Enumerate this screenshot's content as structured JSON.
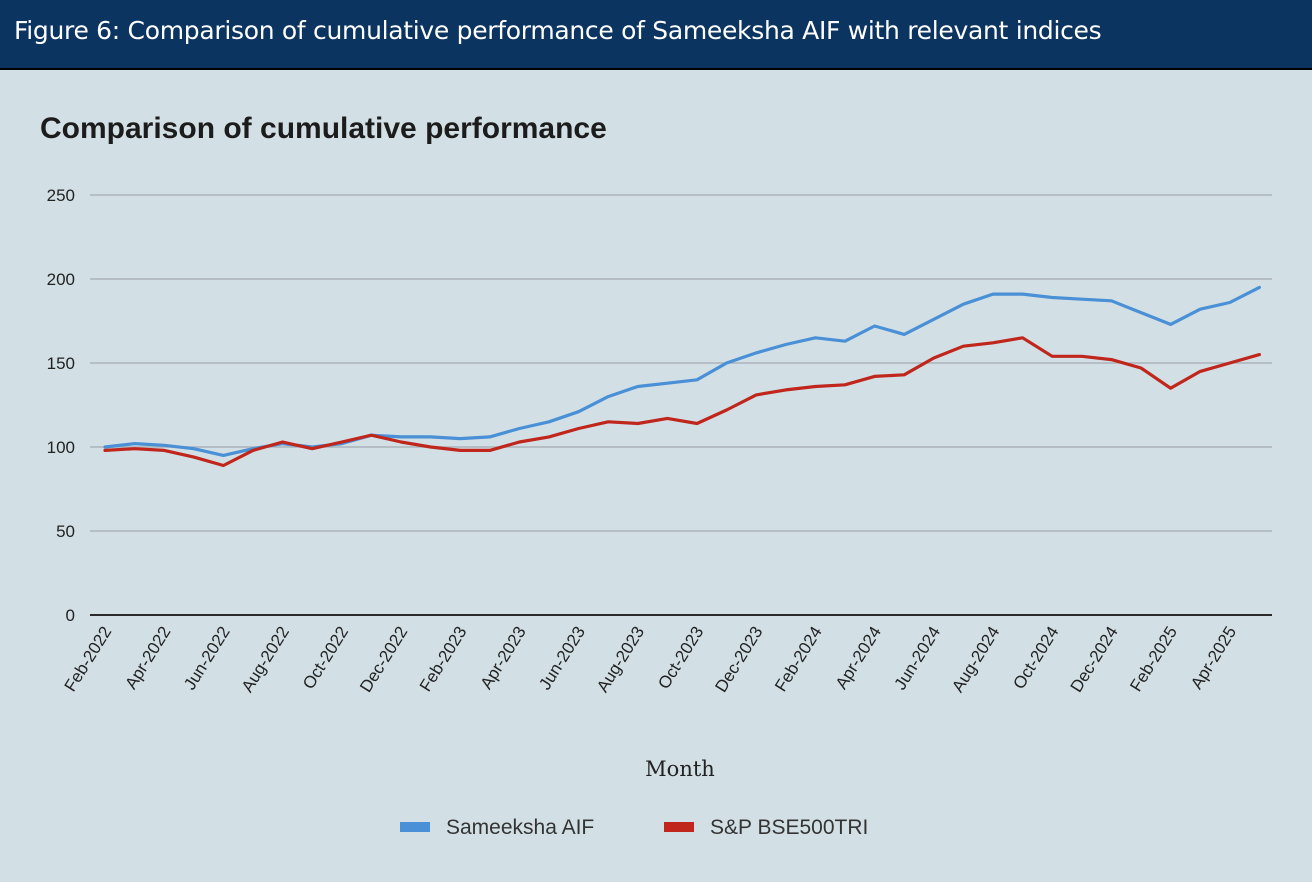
{
  "header": {
    "title": "Figure 6: Comparison of cumulative performance of Sameeksha AIF with relevant indices"
  },
  "chart_data": {
    "type": "line",
    "title": "Comparison of cumulative performance",
    "xlabel": "Month",
    "ylabel": "",
    "ylim": [
      0,
      250
    ],
    "yticks": [
      0,
      50,
      100,
      150,
      200,
      250
    ],
    "grid": true,
    "legend_position": "bottom",
    "x": [
      "Feb-2022",
      "Mar-2022",
      "Apr-2022",
      "May-2022",
      "Jun-2022",
      "Jul-2022",
      "Aug-2022",
      "Sep-2022",
      "Oct-2022",
      "Nov-2022",
      "Dec-2022",
      "Jan-2023",
      "Feb-2023",
      "Mar-2023",
      "Apr-2023",
      "May-2023",
      "Jun-2023",
      "Jul-2023",
      "Aug-2023",
      "Sep-2023",
      "Oct-2023",
      "Nov-2023",
      "Dec-2023",
      "Jan-2024",
      "Feb-2024",
      "Mar-2024",
      "Apr-2024",
      "May-2024",
      "Jun-2024",
      "Jul-2024",
      "Aug-2024",
      "Sep-2024",
      "Oct-2024",
      "Nov-2024",
      "Dec-2024",
      "Jan-2025",
      "Feb-2025",
      "Mar-2025",
      "Apr-2025",
      "May-2025"
    ],
    "x_tick_labels": [
      "Feb-2022",
      "Apr-2022",
      "Jun-2022",
      "Aug-2022",
      "Oct-2022",
      "Dec-2022",
      "Feb-2023",
      "Apr-2023",
      "Jun-2023",
      "Aug-2023",
      "Oct-2023",
      "Dec-2023",
      "Feb-2024",
      "Apr-2024",
      "Jun-2024",
      "Aug-2024",
      "Oct-2024",
      "Dec-2024",
      "Feb-2025",
      "Apr-2025"
    ],
    "series": [
      {
        "name": "Sameeksha AIF",
        "color": "#4a90d6",
        "values": [
          100,
          102,
          101,
          99,
          95,
          99,
          102,
          100,
          102,
          107,
          106,
          106,
          105,
          106,
          111,
          115,
          121,
          130,
          136,
          138,
          140,
          150,
          156,
          161,
          165,
          163,
          172,
          167,
          176,
          185,
          191,
          191,
          189,
          188,
          187,
          180,
          173,
          182,
          186,
          195
        ]
      },
      {
        "name": "S&P BSE500TRI",
        "color": "#c0261b",
        "values": [
          98,
          99,
          98,
          94,
          89,
          98,
          103,
          99,
          103,
          107,
          103,
          100,
          98,
          98,
          103,
          106,
          111,
          115,
          114,
          117,
          114,
          122,
          131,
          134,
          136,
          137,
          142,
          143,
          153,
          160,
          162,
          165,
          154,
          154,
          152,
          147,
          135,
          145,
          150,
          155
        ]
      }
    ]
  }
}
